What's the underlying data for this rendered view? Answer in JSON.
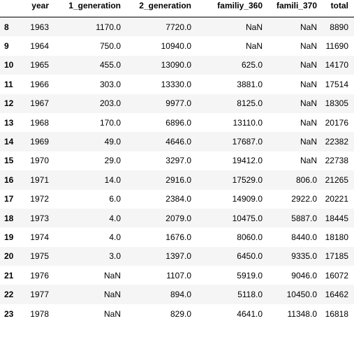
{
  "table": {
    "columns": [
      "",
      "year",
      "1_generation",
      "2_generation",
      "familiy_360",
      "famili_370",
      "total"
    ],
    "rows": [
      {
        "index": "8",
        "cells": [
          "1963",
          "1170.0",
          "7720.0",
          "NaN",
          "NaN",
          "8890"
        ]
      },
      {
        "index": "9",
        "cells": [
          "1964",
          "750.0",
          "10940.0",
          "NaN",
          "NaN",
          "11690"
        ]
      },
      {
        "index": "10",
        "cells": [
          "1965",
          "455.0",
          "13090.0",
          "625.0",
          "NaN",
          "14170"
        ]
      },
      {
        "index": "11",
        "cells": [
          "1966",
          "303.0",
          "13330.0",
          "3881.0",
          "NaN",
          "17514"
        ]
      },
      {
        "index": "12",
        "cells": [
          "1967",
          "203.0",
          "9977.0",
          "8125.0",
          "NaN",
          "18305"
        ]
      },
      {
        "index": "13",
        "cells": [
          "1968",
          "170.0",
          "6896.0",
          "13110.0",
          "NaN",
          "20176"
        ]
      },
      {
        "index": "14",
        "cells": [
          "1969",
          "49.0",
          "4646.0",
          "17687.0",
          "NaN",
          "22382"
        ]
      },
      {
        "index": "15",
        "cells": [
          "1970",
          "29.0",
          "3297.0",
          "19412.0",
          "NaN",
          "22738"
        ]
      },
      {
        "index": "16",
        "cells": [
          "1971",
          "14.0",
          "2916.0",
          "17529.0",
          "806.0",
          "21265"
        ]
      },
      {
        "index": "17",
        "cells": [
          "1972",
          "6.0",
          "2384.0",
          "14909.0",
          "2922.0",
          "20221"
        ]
      },
      {
        "index": "18",
        "cells": [
          "1973",
          "4.0",
          "2079.0",
          "10475.0",
          "5887.0",
          "18445"
        ]
      },
      {
        "index": "19",
        "cells": [
          "1974",
          "4.0",
          "1676.0",
          "8060.0",
          "8440.0",
          "18180"
        ]
      },
      {
        "index": "20",
        "cells": [
          "1975",
          "3.0",
          "1397.0",
          "6450.0",
          "9335.0",
          "17185"
        ]
      },
      {
        "index": "21",
        "cells": [
          "1976",
          "NaN",
          "1107.0",
          "5919.0",
          "9046.0",
          "16072"
        ]
      },
      {
        "index": "22",
        "cells": [
          "1977",
          "NaN",
          "894.0",
          "5118.0",
          "10450.0",
          "16462"
        ]
      },
      {
        "index": "23",
        "cells": [
          "1978",
          "NaN",
          "829.0",
          "4641.0",
          "11348.0",
          "16818"
        ]
      }
    ]
  }
}
